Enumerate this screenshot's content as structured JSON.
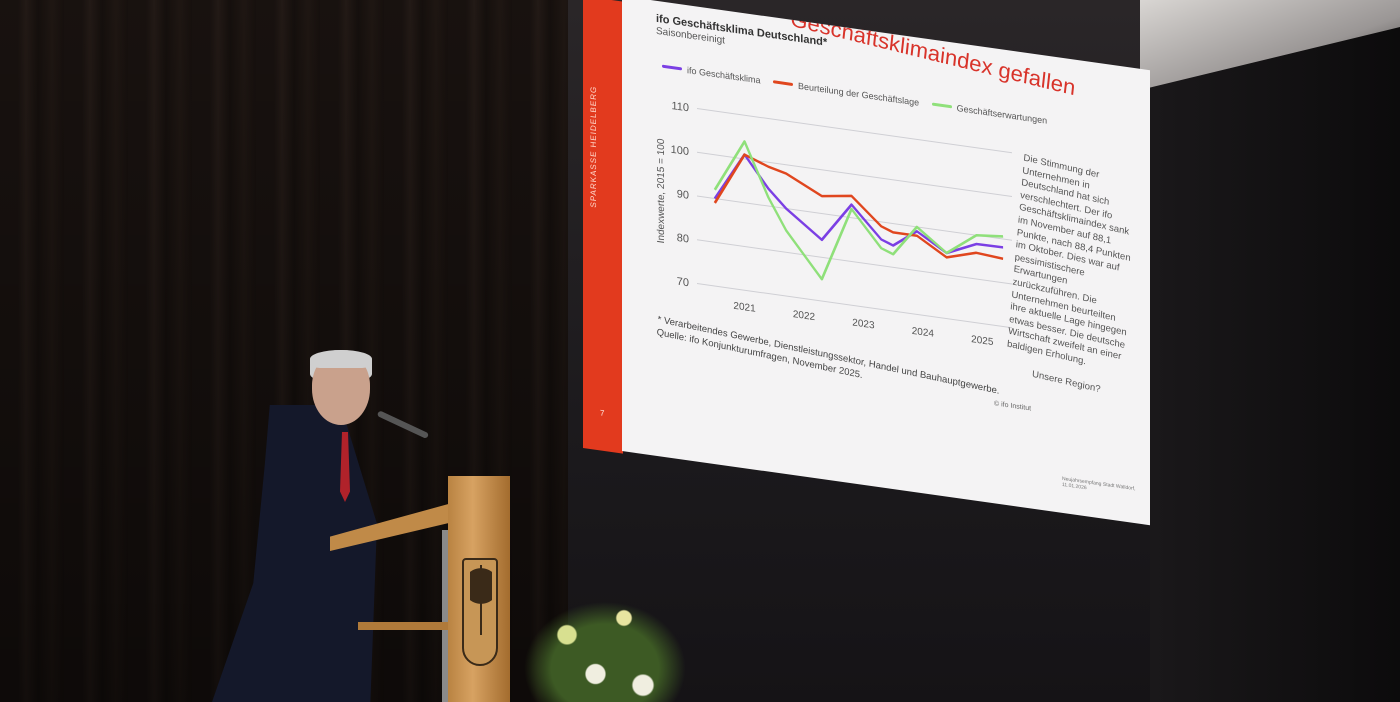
{
  "slide": {
    "brand": "SPARKASSE HEIDELBERG",
    "page_number": "7",
    "title": "Geschäftsklimaindex gefallen",
    "chart_title": "ifo Geschäftsklima Deutschland*",
    "chart_subtitle": "Saisonbereinigt",
    "paragraph": "Die Stimmung der Unternehmen in Deutschland hat sich verschlechtert. Der ifo Geschäftsklimaindex sank im November auf 88,1 Punkte, nach 88,4 Punkten im Oktober. Dies war auf pessimistischere Erwartungen zurückzuführen. Die Unternehmen beurteilten ihre aktuelle Lage hingegen etwas besser. Die deutsche Wirtschaft zweifelt an einer baldigen Erholung.",
    "question": "Unsere Region?",
    "footnote": "* Verarbeitendes Gewerbe, Dienstleistungssektor, Handel und Bauhauptgewerbe.",
    "source": "Quelle: ifo Konjunkturumfragen, November 2025.",
    "copyright": "© ifo Institut",
    "footer": "Neujahrsempfang Stadt Walldorf, 11.01.2026"
  },
  "chart_data": {
    "type": "line",
    "title": "ifo Geschäftsklima Deutschland*",
    "subtitle": "Saisonbereinigt",
    "ylabel": "Indexwerte, 2015 = 100",
    "ylim": [
      70,
      110
    ],
    "yticks": [
      110,
      100,
      90,
      80,
      70
    ],
    "xticks": [
      "2021",
      "2022",
      "2023",
      "2024",
      "2025"
    ],
    "grid": true,
    "legend": "top",
    "x": [
      2021.0,
      2021.5,
      2021.9,
      2022.2,
      2022.8,
      2023.3,
      2023.8,
      2024.0,
      2024.4,
      2024.9,
      2025.4,
      2025.85
    ],
    "series": [
      {
        "name": "ifo Geschäftsklima",
        "color": "#7b3fe4",
        "values": [
          90,
          101,
          94,
          90,
          84,
          93,
          86,
          85,
          89,
          85,
          88,
          88.1
        ]
      },
      {
        "name": "Beurteilung der Geschäftslage",
        "color": "#e0461e",
        "values": [
          89,
          101,
          99,
          98,
          94,
          95,
          89,
          88,
          88,
          84,
          86,
          85.5
        ]
      },
      {
        "name": "Geschäftserwartungen",
        "color": "#8fe07a",
        "values": [
          92,
          104,
          92,
          85,
          75,
          92,
          84,
          83,
          90,
          85,
          90,
          90.6
        ]
      }
    ]
  }
}
